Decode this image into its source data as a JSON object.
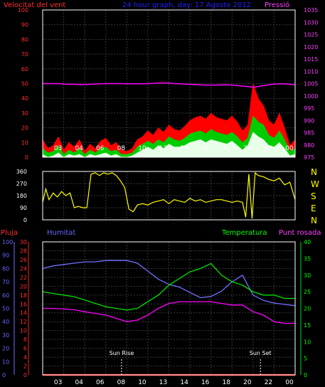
{
  "header": {
    "left_title": "Velocitat del vent",
    "center_title": "24 hour graph, day: 17 Agosto 2012",
    "right_title": "Pressió"
  },
  "colors": {
    "background": "#000000",
    "grid": "#3a3a3a",
    "frame": "#ffffff",
    "wind_gust": "#ff0000",
    "wind_avg": "#00cc00",
    "wind_min": "#e8ffe8",
    "pressure": "#ff00ff",
    "direction": "#ffff00",
    "rain": "#ff2020",
    "humidity": "#7070ff",
    "temperature": "#00e000",
    "dewpoint": "#ff00ff",
    "left_axis_text": "#ff3030",
    "center_title_text": "#2020ff",
    "pressure_axis_text": "#ff40ff",
    "humidity_axis_text": "#6666ff",
    "temperature_axis_text": "#00ff00",
    "direction_label_text": "#ffff00",
    "marker_text": "#ffffff"
  },
  "x_tick_labels": [
    "03",
    "04",
    "06",
    "08",
    "10",
    "13",
    "14",
    "16",
    "18",
    "20",
    "22",
    "00"
  ],
  "chart_data": [
    {
      "type": "line",
      "name": "wind-and-pressure",
      "x_hours": [
        0,
        0.5,
        1,
        1.5,
        2,
        2.5,
        3,
        3.5,
        4,
        4.5,
        5,
        5.5,
        6,
        6.5,
        7,
        7.5,
        8,
        8.5,
        9,
        9.5,
        10,
        10.5,
        11,
        11.5,
        12,
        12.5,
        13,
        13.5,
        14,
        14.5,
        15,
        15.5,
        16,
        16.5,
        17,
        17.5,
        18,
        18.5,
        19,
        19.5,
        20,
        20.5,
        21,
        21.5,
        22,
        22.5,
        23,
        23.5,
        24
      ],
      "series": [
        {
          "key": "gust",
          "values": [
            12,
            6,
            8,
            14,
            5,
            10,
            7,
            12,
            4,
            9,
            6,
            11,
            13,
            8,
            10,
            5,
            4,
            6,
            12,
            14,
            18,
            15,
            20,
            17,
            22,
            19,
            18,
            21,
            25,
            27,
            28,
            26,
            30,
            27,
            26,
            25,
            28,
            24,
            18,
            22,
            50,
            40,
            35,
            25,
            22,
            30,
            20,
            8,
            12
          ]
        },
        {
          "key": "avg",
          "values": [
            6,
            3,
            4,
            8,
            2,
            5,
            3,
            6,
            2,
            5,
            3,
            6,
            7,
            4,
            5,
            2,
            2,
            3,
            7,
            9,
            11,
            9,
            12,
            10,
            14,
            12,
            11,
            13,
            16,
            17,
            18,
            16,
            19,
            17,
            16,
            15,
            17,
            14,
            10,
            13,
            28,
            24,
            22,
            15,
            13,
            18,
            12,
            4,
            6
          ]
        },
        {
          "key": "min",
          "values": [
            2,
            0,
            1,
            3,
            0,
            2,
            1,
            2,
            0,
            2,
            1,
            2,
            3,
            1,
            2,
            0,
            0,
            1,
            3,
            5,
            7,
            5,
            8,
            6,
            9,
            7,
            7,
            8,
            10,
            11,
            12,
            10,
            12,
            11,
            10,
            9,
            11,
            8,
            5,
            8,
            17,
            14,
            12,
            8,
            7,
            10,
            6,
            1,
            2
          ]
        }
      ],
      "pressure": {
        "key": "pressure",
        "values": [
          1005,
          1005,
          1005,
          1005,
          1004.8,
          1004.7,
          1004.7,
          1004.6,
          1004.6,
          1004.7,
          1004.8,
          1004.9,
          1005,
          1005,
          1005,
          1005,
          1004.9,
          1004.9,
          1004.9,
          1004.9,
          1005,
          1005.1,
          1005.2,
          1005.3,
          1005.2,
          1005,
          1004.9,
          1004.8,
          1004.7,
          1004.6,
          1004.5,
          1004.4,
          1004.4,
          1004.4,
          1004.5,
          1004.5,
          1004.4,
          1004.2,
          1004,
          1003.8,
          1003.5,
          1003.8,
          1004.2,
          1004.5,
          1004.8,
          1004.9,
          1004.9,
          1004.7,
          1004.5
        ]
      },
      "left_axis": {
        "min": 0,
        "max": 100,
        "ticks": [
          0,
          10,
          20,
          30,
          40,
          50,
          60,
          70,
          80,
          90,
          100
        ]
      },
      "right_axis": {
        "min": 975,
        "max": 1035,
        "ticks": [
          975,
          980,
          985,
          990,
          995,
          1000,
          1005,
          1010,
          1015,
          1020,
          1025,
          1030,
          1035
        ]
      },
      "grid": true
    },
    {
      "type": "line",
      "name": "wind-direction",
      "x_hours": [
        0,
        0.3,
        0.6,
        1,
        1.4,
        1.8,
        2.2,
        2.6,
        3,
        3.4,
        3.8,
        4.2,
        4.6,
        5,
        5.4,
        5.8,
        6.2,
        6.6,
        7,
        7.4,
        7.8,
        8.2,
        8.6,
        9,
        9.5,
        10,
        10.5,
        11,
        11.5,
        12,
        12.5,
        13,
        13.5,
        14,
        14.5,
        15,
        15.5,
        16,
        16.5,
        17,
        17.5,
        18,
        18.5,
        19,
        19.3,
        19.6,
        19.9,
        20.2,
        20.5,
        21,
        21.5,
        22,
        22.5,
        23,
        23.5,
        24
      ],
      "values": [
        130,
        230,
        150,
        200,
        170,
        210,
        180,
        200,
        90,
        100,
        90,
        90,
        340,
        350,
        330,
        350,
        340,
        350,
        330,
        290,
        240,
        80,
        60,
        110,
        120,
        110,
        130,
        140,
        150,
        120,
        150,
        140,
        130,
        160,
        140,
        150,
        130,
        140,
        150,
        150,
        140,
        130,
        140,
        130,
        20,
        340,
        10,
        350,
        330,
        320,
        300,
        290,
        310,
        260,
        280,
        150
      ],
      "axis": {
        "min": 0,
        "max": 360,
        "ticks": [
          0,
          90,
          180,
          270,
          360
        ]
      },
      "compass_labels": [
        "N",
        "W",
        "S",
        "E",
        "N"
      ]
    },
    {
      "type": "line",
      "name": "rain-humidity-temp-dewpoint",
      "axis_titles": {
        "rain": "Pluja",
        "humidity": "Humitat",
        "temperature": "Temperatura",
        "dewpoint": "Punt rosada"
      },
      "x_hours": [
        0,
        1,
        2,
        3,
        4,
        5,
        6,
        7,
        8,
        9,
        10,
        11,
        12,
        13,
        14,
        15,
        16,
        17,
        18,
        19,
        20,
        21,
        22,
        23,
        24
      ],
      "humidity": {
        "values": [
          80,
          82,
          83,
          84,
          85,
          85,
          86,
          86,
          86,
          84,
          78,
          72,
          68,
          66,
          62,
          58,
          59,
          63,
          70,
          75,
          60,
          56,
          54,
          53,
          52
        ]
      },
      "temperature": {
        "values": [
          25,
          24.5,
          24,
          23.5,
          22.5,
          21.5,
          20.5,
          20,
          19.5,
          20,
          22,
          24,
          27,
          29,
          31,
          32,
          33.5,
          30,
          28,
          27,
          25,
          24,
          24,
          23,
          23
        ]
      },
      "dewpoint": {
        "values": [
          20,
          20,
          19.8,
          19.6,
          19,
          18.5,
          18,
          17,
          16,
          16.5,
          18,
          20,
          21.5,
          22,
          22,
          22,
          22,
          21.5,
          21,
          21,
          19,
          18,
          16,
          15.5,
          15.5
        ]
      },
      "rain": {
        "values": [
          0,
          0,
          0,
          0,
          0,
          0,
          0,
          0,
          0,
          0,
          0,
          0,
          0,
          0,
          0,
          0,
          0,
          0,
          0,
          0,
          0,
          0,
          0,
          0,
          0
        ]
      },
      "left_axis": {
        "min": 0,
        "max": 30,
        "ticks": [
          0,
          2,
          4,
          6,
          8,
          10,
          12,
          14,
          16,
          18,
          20,
          22,
          24,
          26,
          28,
          30
        ]
      },
      "humidity_axis": {
        "min": 0,
        "max": 100,
        "ticks": [
          0,
          10,
          20,
          30,
          40,
          50,
          60,
          70,
          80,
          90,
          100
        ]
      },
      "right_axis": {
        "min": 0,
        "max": 40,
        "ticks": [
          0,
          5,
          10,
          15,
          20,
          25,
          30,
          35,
          40
        ]
      },
      "markers": [
        {
          "label": "Sun Rise",
          "hour": 7.5
        },
        {
          "label": "Sun Set",
          "hour": 20.7
        }
      ],
      "grid": true
    }
  ]
}
